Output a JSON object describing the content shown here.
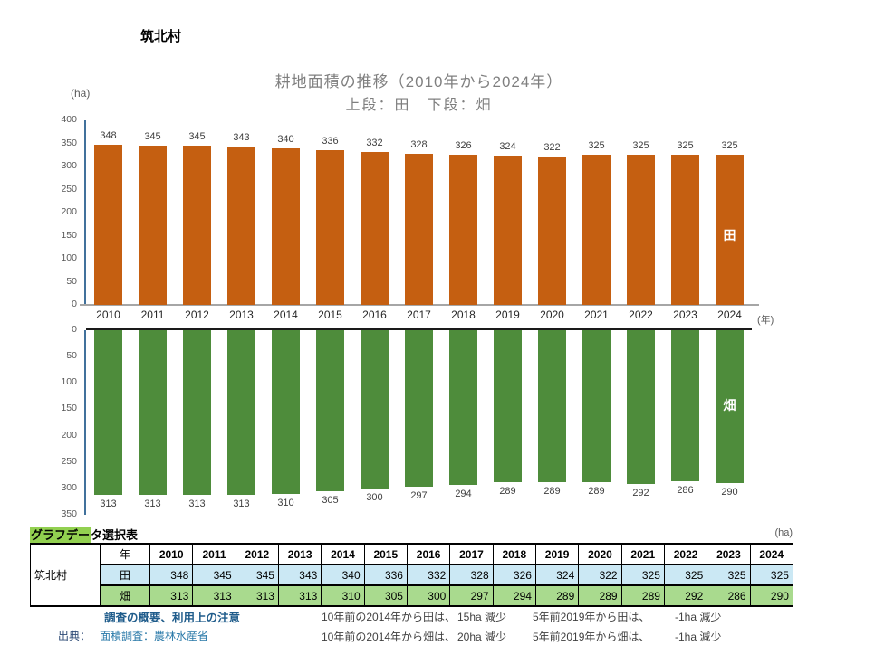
{
  "header": {
    "region": "筑北村"
  },
  "chart": {
    "unit_label": "(ha)",
    "x_unit_label": "(年)"
  },
  "chart_data": {
    "type": "bar",
    "title": "耕地面積の推移（2010年から2024年）",
    "subtitle": "上段：田　下段：畑",
    "ylabel": "(ha)",
    "xlabel": "(年)",
    "grid": false,
    "legend_position": "in-bar-right",
    "categories": [
      "2010",
      "2011",
      "2012",
      "2013",
      "2014",
      "2015",
      "2016",
      "2017",
      "2018",
      "2019",
      "2020",
      "2021",
      "2022",
      "2023",
      "2024"
    ],
    "panels": [
      {
        "name": "田",
        "color": "#C55F11",
        "axis_min": 0,
        "axis_max": 400,
        "tick_step": 50,
        "inverted": false,
        "values": [
          348,
          345,
          345,
          343,
          340,
          336,
          332,
          328,
          326,
          324,
          322,
          325,
          325,
          325,
          325
        ]
      },
      {
        "name": "畑",
        "color": "#4E8C3B",
        "axis_min": 0,
        "axis_max": 350,
        "tick_step": 50,
        "inverted": true,
        "values": [
          313,
          313,
          313,
          313,
          310,
          305,
          300,
          297,
          294,
          289,
          289,
          289,
          292,
          286,
          290
        ]
      }
    ]
  },
  "table": {
    "title_highlight": "グラフデー",
    "title_rest": "タ選択表",
    "unit_label": "(ha)",
    "row_group_label": "筑北村",
    "year_key_label": "年",
    "years": [
      "2010",
      "2011",
      "2012",
      "2013",
      "2014",
      "2015",
      "2016",
      "2017",
      "2018",
      "2019",
      "2020",
      "2021",
      "2022",
      "2023",
      "2024"
    ],
    "rows": [
      {
        "label": "田",
        "values": [
          348,
          345,
          345,
          343,
          340,
          336,
          332,
          328,
          326,
          324,
          322,
          325,
          325,
          325,
          325
        ]
      },
      {
        "label": "畑",
        "values": [
          313,
          313,
          313,
          313,
          310,
          305,
          300,
          297,
          294,
          289,
          289,
          289,
          292,
          286,
          290
        ]
      }
    ]
  },
  "footer": {
    "overview_link": "調査の概要、利用上の注意",
    "source_label": "出典：",
    "source_link": "面積調査：農林水産省",
    "notes": [
      [
        "10年前の2014年から田は、",
        "15ha 減少",
        "5年前2019年から田は、",
        "-1ha 減少"
      ],
      [
        "10年前の2014年から畑は、",
        "20ha 減少",
        "5年前2019年から畑は、",
        "-1ha 減少"
      ]
    ]
  }
}
